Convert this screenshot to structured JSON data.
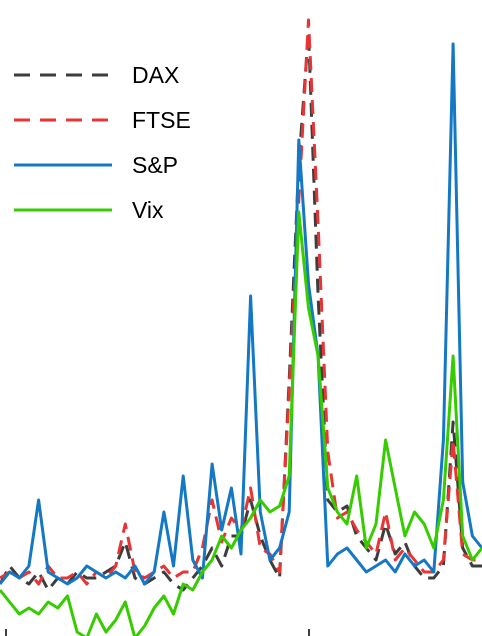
{
  "chart_data": {
    "type": "line",
    "title": "",
    "xlabel": "",
    "ylabel": "",
    "grid": false,
    "legend_position": "top-left",
    "xlim": [
      0,
      100
    ],
    "ylim": [
      0,
      100
    ],
    "x": [
      0,
      2,
      4,
      6,
      8,
      10,
      12,
      14,
      16,
      18,
      20,
      22,
      24,
      26,
      28,
      30,
      32,
      34,
      36,
      38,
      40,
      42,
      44,
      46,
      48,
      50,
      52,
      54,
      56,
      58,
      60,
      62,
      64,
      66,
      68,
      70,
      72,
      74,
      76,
      78,
      80,
      82,
      84,
      86,
      88,
      90,
      92,
      94,
      96,
      98,
      100
    ],
    "series": [
      {
        "name": "DAX",
        "color": "#3d3d3d",
        "dash": "dashed",
        "values": [
          6,
          9,
          7,
          6,
          8,
          5,
          7,
          6,
          8,
          7,
          7,
          8,
          9,
          13,
          7,
          6,
          7,
          8,
          6,
          5,
          7,
          9,
          12,
          9,
          14,
          14,
          20,
          14,
          10,
          7,
          40,
          76,
          98,
          54,
          20,
          18,
          19,
          14,
          12,
          10,
          16,
          11,
          13,
          9,
          7,
          7,
          9,
          33,
          12,
          9,
          9
        ]
      },
      {
        "name": "FTSE",
        "color": "#e83434",
        "dash": "dashed",
        "values": [
          7,
          8,
          7,
          8,
          6,
          9,
          7,
          7,
          8,
          6,
          8,
          7,
          9,
          16,
          8,
          7,
          8,
          9,
          7,
          8,
          8,
          12,
          20,
          13,
          17,
          15,
          22,
          12,
          11,
          8,
          38,
          70,
          100,
          66,
          28,
          17,
          18,
          15,
          13,
          11,
          18,
          10,
          12,
          10,
          8,
          8,
          10,
          30,
          11,
          10,
          10
        ]
      },
      {
        "name": "S&P",
        "color": "#1478c4",
        "dash": "solid",
        "values": [
          6,
          8,
          7,
          9,
          20,
          8,
          7,
          6,
          7,
          9,
          8,
          7,
          8,
          7,
          9,
          6,
          8,
          18,
          9,
          24,
          10,
          7,
          26,
          15,
          22,
          11,
          54,
          18,
          10,
          12,
          18,
          80,
          56,
          44,
          9,
          11,
          12,
          10,
          8,
          9,
          10,
          8,
          11,
          9,
          10,
          8,
          30,
          96,
          23,
          14,
          12
        ]
      },
      {
        "name": "Vix",
        "color": "#36cc00",
        "dash": "solid",
        "values": [
          5,
          3,
          1,
          2,
          1,
          3,
          2,
          4,
          -2,
          -3,
          1,
          -2,
          0,
          3,
          -3,
          -1,
          2,
          4,
          1,
          6,
          5,
          8,
          10,
          14,
          12,
          15,
          17,
          20,
          18,
          19,
          24,
          68,
          52,
          44,
          22,
          18,
          16,
          24,
          12,
          16,
          30,
          22,
          14,
          18,
          16,
          12,
          20,
          44,
          14,
          10,
          12
        ]
      }
    ]
  },
  "colors": {
    "background": "#ffffff",
    "axis": "#000000"
  }
}
